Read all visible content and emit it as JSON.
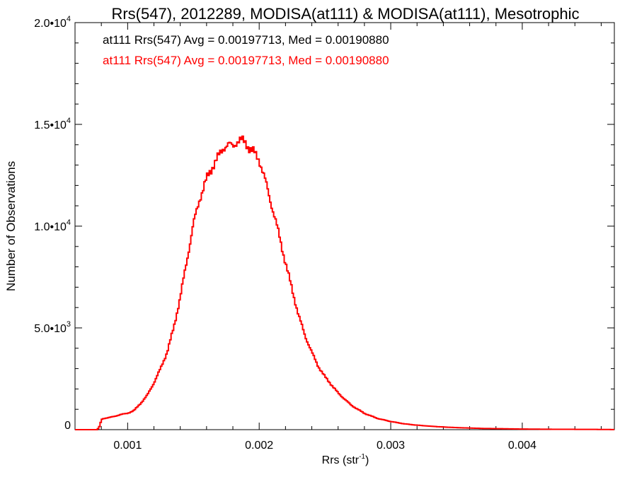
{
  "chart_data": {
    "type": "line",
    "title": "Rrs(547), 2012289, MODISA(at111) & MODISA(at111), Mesotrophic",
    "xlabel_main": "Rrs (str",
    "xlabel_sup": "-1",
    "xlabel_end": ")",
    "ylabel": "Number of Observations",
    "xlim": [
      0.0006,
      0.0047
    ],
    "ylim": [
      0,
      20000
    ],
    "x_ticks": [
      {
        "value": 0.001,
        "label": "0.001"
      },
      {
        "value": 0.002,
        "label": "0.002"
      },
      {
        "value": 0.003,
        "label": "0.003"
      },
      {
        "value": 0.004,
        "label": "0.004"
      }
    ],
    "y_ticks": [
      {
        "value": 0,
        "mant": "0",
        "exp": ""
      },
      {
        "value": 5000,
        "mant": "5.0•10",
        "exp": "3"
      },
      {
        "value": 10000,
        "mant": "1.0•10",
        "exp": "4"
      },
      {
        "value": 15000,
        "mant": "1.5•10",
        "exp": "4"
      },
      {
        "value": 20000,
        "mant": "2.0•10",
        "exp": "4"
      }
    ],
    "legend": [
      {
        "text": "at111 Rrs(547) Avg = 0.00197713, Med = 0.00190880",
        "color": "#000000"
      },
      {
        "text": "at111 Rrs(547) Avg = 0.00197713, Med = 0.00190880",
        "color": "#ff0000"
      }
    ],
    "line_color": "#ff0000",
    "series": [
      {
        "x": [
          0.0006,
          0.0007,
          0.00077,
          0.00079,
          0.0008,
          0.00082,
          0.00086,
          0.0009,
          0.00095,
          0.001,
          0.00105,
          0.0011,
          0.00115,
          0.0012,
          0.00125,
          0.0013,
          0.00135,
          0.0014,
          0.00145,
          0.0015,
          0.00155,
          0.0016,
          0.00165,
          0.0017,
          0.00173,
          0.00176,
          0.0018,
          0.00183,
          0.00186,
          0.0019,
          0.00193,
          0.00196,
          0.002,
          0.00203,
          0.00206,
          0.0021,
          0.00215,
          0.0022,
          0.00225,
          0.0023,
          0.00235,
          0.0024,
          0.00245,
          0.0025,
          0.00255,
          0.0026,
          0.00265,
          0.0027,
          0.00275,
          0.0028,
          0.0029,
          0.003,
          0.0031,
          0.0032,
          0.0033,
          0.0034,
          0.0035,
          0.0036,
          0.0037,
          0.0038,
          0.0039,
          0.004,
          0.0042,
          0.0044,
          0.0046,
          0.0047
        ],
        "y": [
          0,
          0,
          0,
          200,
          500,
          550,
          600,
          650,
          750,
          800,
          950,
          1300,
          1700,
          2300,
          3000,
          3800,
          5000,
          6500,
          8300,
          10100,
          11400,
          12300,
          13000,
          13500,
          13900,
          14000,
          13900,
          14200,
          14200,
          14100,
          13800,
          13600,
          13300,
          12600,
          11900,
          10900,
          9600,
          8200,
          6900,
          5600,
          4600,
          3800,
          3100,
          2600,
          2200,
          1800,
          1500,
          1200,
          1000,
          800,
          550,
          400,
          290,
          220,
          170,
          130,
          100,
          80,
          60,
          50,
          40,
          30,
          20,
          15,
          10,
          5
        ]
      }
    ]
  }
}
